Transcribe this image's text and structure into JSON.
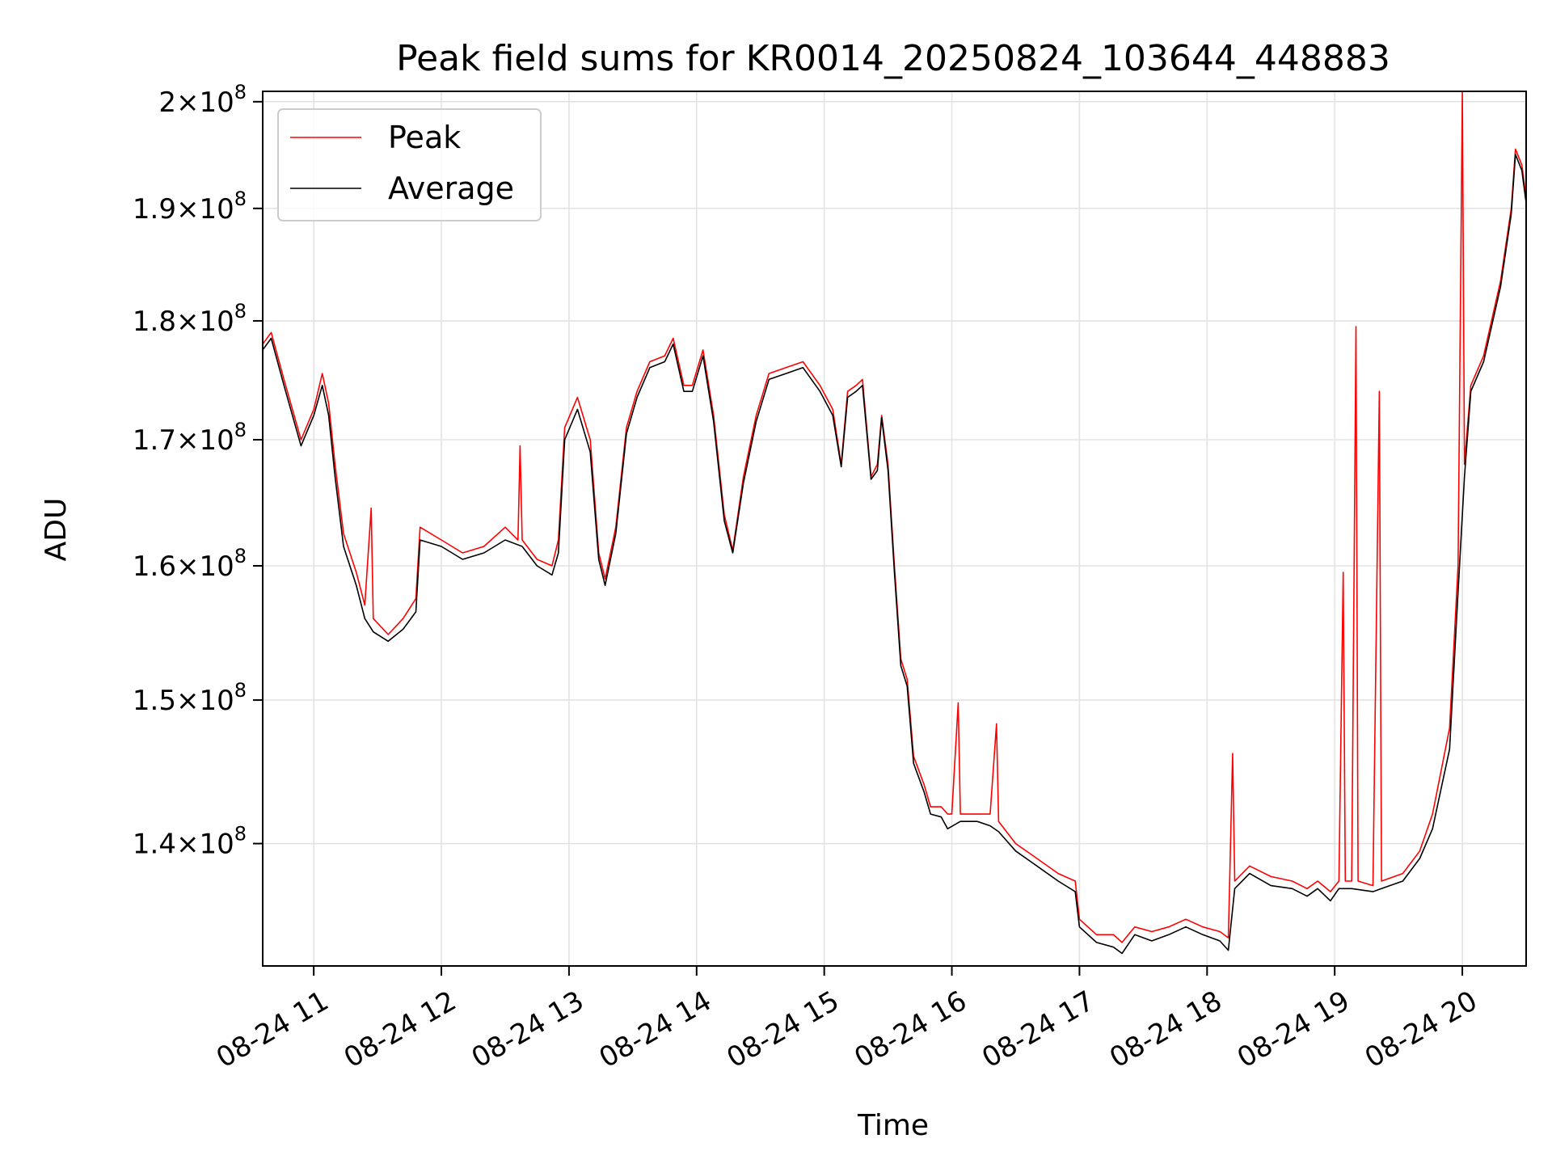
{
  "chart_data": {
    "type": "line",
    "title": "Peak field sums for KR0014_20250824_103644_448883",
    "xlabel": "Time",
    "ylabel": "ADU",
    "xlim": [
      "08-24 10:36",
      "08-24 20:30"
    ],
    "ylim": [
      132000000,
      201000000
    ],
    "y_scale": "log",
    "grid": true,
    "legend_position": "upper-left",
    "x_ticks": [
      "08-24 11",
      "08-24 12",
      "08-24 13",
      "08-24 14",
      "08-24 15",
      "08-24 16",
      "08-24 17",
      "08-24 18",
      "08-24 19",
      "08-24 20"
    ],
    "y_ticks": [
      {
        "value": 140000000,
        "mantissa": "1.4",
        "base": "10",
        "exp": "8"
      },
      {
        "value": 150000000,
        "mantissa": "1.5",
        "base": "10",
        "exp": "8"
      },
      {
        "value": 160000000,
        "mantissa": "1.6",
        "base": "10",
        "exp": "8"
      },
      {
        "value": 170000000,
        "mantissa": "1.7",
        "base": "10",
        "exp": "8"
      },
      {
        "value": 180000000,
        "mantissa": "1.8",
        "base": "10",
        "exp": "8"
      },
      {
        "value": 190000000,
        "mantissa": "1.9",
        "base": "10",
        "exp": "8"
      },
      {
        "value": 200000000,
        "mantissa": "2",
        "base": "10",
        "exp": "8"
      }
    ],
    "series": [
      {
        "name": "Peak",
        "color": "#ff0000",
        "points": [
          [
            "08-24 10:36",
            178000000.0
          ],
          [
            "08-24 10:40",
            179000000.0
          ],
          [
            "08-24 10:46",
            175000000.0
          ],
          [
            "08-24 10:54",
            170000000.0
          ],
          [
            "08-24 11:00",
            172500000.0
          ],
          [
            "08-24 11:04",
            175500000.0
          ],
          [
            "08-24 11:07",
            173000000.0
          ],
          [
            "08-24 11:10",
            168000000.0
          ],
          [
            "08-24 11:14",
            162500000.0
          ],
          [
            "08-24 11:20",
            159500000.0
          ],
          [
            "08-24 11:24",
            157000000.0
          ],
          [
            "08-24 11:27",
            164500000.0
          ],
          [
            "08-24 11:28",
            156000000.0
          ],
          [
            "08-24 11:35",
            154800000.0
          ],
          [
            "08-24 11:42",
            156000000.0
          ],
          [
            "08-24 11:48",
            157500000.0
          ],
          [
            "08-24 11:50",
            163000000.0
          ],
          [
            "08-24 12:00",
            162000000.0
          ],
          [
            "08-24 12:10",
            161000000.0
          ],
          [
            "08-24 12:20",
            161500000.0
          ],
          [
            "08-24 12:30",
            163000000.0
          ],
          [
            "08-24 12:36",
            162000000.0
          ],
          [
            "08-24 12:37",
            169500000.0
          ],
          [
            "08-24 12:38",
            162000000.0
          ],
          [
            "08-24 12:45",
            160500000.0
          ],
          [
            "08-24 12:52",
            160000000.0
          ],
          [
            "08-24 12:55",
            162000000.0
          ],
          [
            "08-24 12:58",
            171000000.0
          ],
          [
            "08-24 13:04",
            173500000.0
          ],
          [
            "08-24 13:10",
            170000000.0
          ],
          [
            "08-24 13:14",
            161000000.0
          ],
          [
            "08-24 13:17",
            159000000.0
          ],
          [
            "08-24 13:22",
            163000000.0
          ],
          [
            "08-24 13:27",
            171000000.0
          ],
          [
            "08-24 13:32",
            174000000.0
          ],
          [
            "08-24 13:38",
            176500000.0
          ],
          [
            "08-24 13:45",
            177000000.0
          ],
          [
            "08-24 13:49",
            178500000.0
          ],
          [
            "08-24 13:54",
            174500000.0
          ],
          [
            "08-24 13:58",
            174500000.0
          ],
          [
            "08-24 14:03",
            177500000.0
          ],
          [
            "08-24 14:08",
            172000000.0
          ],
          [
            "08-24 14:13",
            164000000.0
          ],
          [
            "08-24 14:17",
            161200000.0
          ],
          [
            "08-24 14:22",
            167000000.0
          ],
          [
            "08-24 14:28",
            172000000.0
          ],
          [
            "08-24 14:34",
            175500000.0
          ],
          [
            "08-24 14:42",
            176000000.0
          ],
          [
            "08-24 14:50",
            176500000.0
          ],
          [
            "08-24 14:58",
            174500000.0
          ],
          [
            "08-24 15:04",
            172500000.0
          ],
          [
            "08-24 15:08",
            168000000.0
          ],
          [
            "08-24 15:11",
            174000000.0
          ],
          [
            "08-24 15:15",
            174500000.0
          ],
          [
            "08-24 15:18",
            175000000.0
          ],
          [
            "08-24 15:22",
            167000000.0
          ],
          [
            "08-24 15:25",
            168000000.0
          ],
          [
            "08-24 15:27",
            172000000.0
          ],
          [
            "08-24 15:30",
            168000000.0
          ],
          [
            "08-24 15:33",
            160000000.0
          ],
          [
            "08-24 15:36",
            153000000.0
          ],
          [
            "08-24 15:39",
            151500000.0
          ],
          [
            "08-24 15:42",
            146000000.0
          ],
          [
            "08-24 15:47",
            144000000.0
          ],
          [
            "08-24 15:50",
            142500000.0
          ],
          [
            "08-24 15:55",
            142500000.0
          ],
          [
            "08-24 15:58",
            142000000.0
          ],
          [
            "08-24 16:00",
            142000000.0
          ],
          [
            "08-24 16:03",
            149800000.0
          ],
          [
            "08-24 16:04",
            142000000.0
          ],
          [
            "08-24 16:12",
            142000000.0
          ],
          [
            "08-24 16:18",
            142000000.0
          ],
          [
            "08-24 16:21",
            148300000.0
          ],
          [
            "08-24 16:22",
            141500000.0
          ],
          [
            "08-24 16:30",
            140000000.0
          ],
          [
            "08-24 16:40",
            139000000.0
          ],
          [
            "08-24 16:50",
            138000000.0
          ],
          [
            "08-24 16:58",
            137500000.0
          ],
          [
            "08-24 17:00",
            135000000.0
          ],
          [
            "08-24 17:08",
            134000000.0
          ],
          [
            "08-24 17:16",
            134000000.0
          ],
          [
            "08-24 17:20",
            133500000.0
          ],
          [
            "08-24 17:26",
            134500000.0
          ],
          [
            "08-24 17:34",
            134200000.0
          ],
          [
            "08-24 17:42",
            134500000.0
          ],
          [
            "08-24 17:50",
            135000000.0
          ],
          [
            "08-24 17:58",
            134500000.0
          ],
          [
            "08-24 18:06",
            134200000.0
          ],
          [
            "08-24 18:10",
            133800000.0
          ],
          [
            "08-24 18:12",
            146200000.0
          ],
          [
            "08-24 18:13",
            137500000.0
          ],
          [
            "08-24 18:20",
            138500000.0
          ],
          [
            "08-24 18:30",
            137800000.0
          ],
          [
            "08-24 18:40",
            137500000.0
          ],
          [
            "08-24 18:47",
            137000000.0
          ],
          [
            "08-24 18:52",
            137500000.0
          ],
          [
            "08-24 18:58",
            136800000.0
          ],
          [
            "08-24 19:02",
            137500000.0
          ],
          [
            "08-24 19:04",
            159500000.0
          ],
          [
            "08-24 19:05",
            137500000.0
          ],
          [
            "08-24 19:08",
            137500000.0
          ],
          [
            "08-24 19:10",
            179500000.0
          ],
          [
            "08-24 19:11",
            137500000.0
          ],
          [
            "08-24 19:18",
            137200000.0
          ],
          [
            "08-24 19:21",
            174000000.0
          ],
          [
            "08-24 19:22",
            137500000.0
          ],
          [
            "08-24 19:32",
            138000000.0
          ],
          [
            "08-24 19:40",
            139500000.0
          ],
          [
            "08-24 19:46",
            142000000.0
          ],
          [
            "08-24 19:54",
            148000000.0
          ],
          [
            "08-24 19:58",
            160000000.0
          ],
          [
            "08-24 20:00",
            201000000.0
          ],
          [
            "08-24 20:01",
            168000000.0
          ],
          [
            "08-24 20:04",
            174500000.0
          ],
          [
            "08-24 20:10",
            177000000.0
          ],
          [
            "08-24 20:18",
            183500000.0
          ],
          [
            "08-24 20:23",
            190000000.0
          ],
          [
            "08-24 20:25",
            195500000.0
          ],
          [
            "08-24 20:28",
            194000000.0
          ],
          [
            "08-24 20:30",
            191000000.0
          ]
        ]
      },
      {
        "name": "Average",
        "color": "#000000",
        "points": [
          [
            "08-24 10:36",
            177500000.0
          ],
          [
            "08-24 10:40",
            178500000.0
          ],
          [
            "08-24 10:46",
            174500000.0
          ],
          [
            "08-24 10:54",
            169500000.0
          ],
          [
            "08-24 11:00",
            172000000.0
          ],
          [
            "08-24 11:04",
            174500000.0
          ],
          [
            "08-24 11:07",
            172000000.0
          ],
          [
            "08-24 11:10",
            167000000.0
          ],
          [
            "08-24 11:14",
            161500000.0
          ],
          [
            "08-24 11:20",
            158500000.0
          ],
          [
            "08-24 11:24",
            156000000.0
          ],
          [
            "08-24 11:28",
            155000000.0
          ],
          [
            "08-24 11:35",
            154300000.0
          ],
          [
            "08-24 11:42",
            155200000.0
          ],
          [
            "08-24 11:48",
            156500000.0
          ],
          [
            "08-24 11:50",
            162000000.0
          ],
          [
            "08-24 12:00",
            161500000.0
          ],
          [
            "08-24 12:10",
            160500000.0
          ],
          [
            "08-24 12:20",
            161000000.0
          ],
          [
            "08-24 12:30",
            162000000.0
          ],
          [
            "08-24 12:38",
            161500000.0
          ],
          [
            "08-24 12:45",
            160000000.0
          ],
          [
            "08-24 12:52",
            159300000.0
          ],
          [
            "08-24 12:55",
            161000000.0
          ],
          [
            "08-24 12:58",
            170000000.0
          ],
          [
            "08-24 13:04",
            172500000.0
          ],
          [
            "08-24 13:10",
            169000000.0
          ],
          [
            "08-24 13:14",
            160500000.0
          ],
          [
            "08-24 13:17",
            158500000.0
          ],
          [
            "08-24 13:22",
            162500000.0
          ],
          [
            "08-24 13:27",
            170500000.0
          ],
          [
            "08-24 13:32",
            173500000.0
          ],
          [
            "08-24 13:38",
            176000000.0
          ],
          [
            "08-24 13:45",
            176500000.0
          ],
          [
            "08-24 13:49",
            178000000.0
          ],
          [
            "08-24 13:54",
            174000000.0
          ],
          [
            "08-24 13:58",
            174000000.0
          ],
          [
            "08-24 14:03",
            177000000.0
          ],
          [
            "08-24 14:08",
            171500000.0
          ],
          [
            "08-24 14:13",
            163500000.0
          ],
          [
            "08-24 14:17",
            161000000.0
          ],
          [
            "08-24 14:22",
            166500000.0
          ],
          [
            "08-24 14:28",
            171500000.0
          ],
          [
            "08-24 14:34",
            175000000.0
          ],
          [
            "08-24 14:42",
            175500000.0
          ],
          [
            "08-24 14:50",
            176000000.0
          ],
          [
            "08-24 14:58",
            174000000.0
          ],
          [
            "08-24 15:04",
            172000000.0
          ],
          [
            "08-24 15:08",
            167800000.0
          ],
          [
            "08-24 15:11",
            173500000.0
          ],
          [
            "08-24 15:15",
            174000000.0
          ],
          [
            "08-24 15:18",
            174500000.0
          ],
          [
            "08-24 15:22",
            166800000.0
          ],
          [
            "08-24 15:25",
            167500000.0
          ],
          [
            "08-24 15:27",
            171800000.0
          ],
          [
            "08-24 15:30",
            167500000.0
          ],
          [
            "08-24 15:33",
            159500000.0
          ],
          [
            "08-24 15:36",
            152500000.0
          ],
          [
            "08-24 15:39",
            151000000.0
          ],
          [
            "08-24 15:42",
            145500000.0
          ],
          [
            "08-24 15:47",
            143500000.0
          ],
          [
            "08-24 15:50",
            142000000.0
          ],
          [
            "08-24 15:55",
            141800000.0
          ],
          [
            "08-24 15:58",
            141000000.0
          ],
          [
            "08-24 16:04",
            141500000.0
          ],
          [
            "08-24 16:12",
            141500000.0
          ],
          [
            "08-24 16:18",
            141200000.0
          ],
          [
            "08-24 16:22",
            140800000.0
          ],
          [
            "08-24 16:30",
            139500000.0
          ],
          [
            "08-24 16:40",
            138500000.0
          ],
          [
            "08-24 16:50",
            137500000.0
          ],
          [
            "08-24 16:58",
            136800000.0
          ],
          [
            "08-24 17:00",
            134500000.0
          ],
          [
            "08-24 17:08",
            133500000.0
          ],
          [
            "08-24 17:16",
            133200000.0
          ],
          [
            "08-24 17:20",
            132800000.0
          ],
          [
            "08-24 17:26",
            134000000.0
          ],
          [
            "08-24 17:34",
            133600000.0
          ],
          [
            "08-24 17:42",
            134000000.0
          ],
          [
            "08-24 17:50",
            134500000.0
          ],
          [
            "08-24 17:58",
            134000000.0
          ],
          [
            "08-24 18:06",
            133600000.0
          ],
          [
            "08-24 18:10",
            133000000.0
          ],
          [
            "08-24 18:13",
            137000000.0
          ],
          [
            "08-24 18:20",
            138000000.0
          ],
          [
            "08-24 18:30",
            137200000.0
          ],
          [
            "08-24 18:40",
            137000000.0
          ],
          [
            "08-24 18:47",
            136500000.0
          ],
          [
            "08-24 18:52",
            137000000.0
          ],
          [
            "08-24 18:58",
            136200000.0
          ],
          [
            "08-24 19:02",
            137000000.0
          ],
          [
            "08-24 19:08",
            137000000.0
          ],
          [
            "08-24 19:18",
            136800000.0
          ],
          [
            "08-24 19:22",
            137000000.0
          ],
          [
            "08-24 19:32",
            137500000.0
          ],
          [
            "08-24 19:40",
            139000000.0
          ],
          [
            "08-24 19:46",
            141000000.0
          ],
          [
            "08-24 19:54",
            146500000.0
          ],
          [
            "08-24 19:58",
            158000000.0
          ],
          [
            "08-24 20:01",
            167000000.0
          ],
          [
            "08-24 20:04",
            174000000.0
          ],
          [
            "08-24 20:10",
            176500000.0
          ],
          [
            "08-24 20:18",
            183000000.0
          ],
          [
            "08-24 20:23",
            189500000.0
          ],
          [
            "08-24 20:25",
            195000000.0
          ],
          [
            "08-24 20:28",
            193500000.0
          ],
          [
            "08-24 20:30",
            190500000.0
          ]
        ]
      }
    ]
  }
}
